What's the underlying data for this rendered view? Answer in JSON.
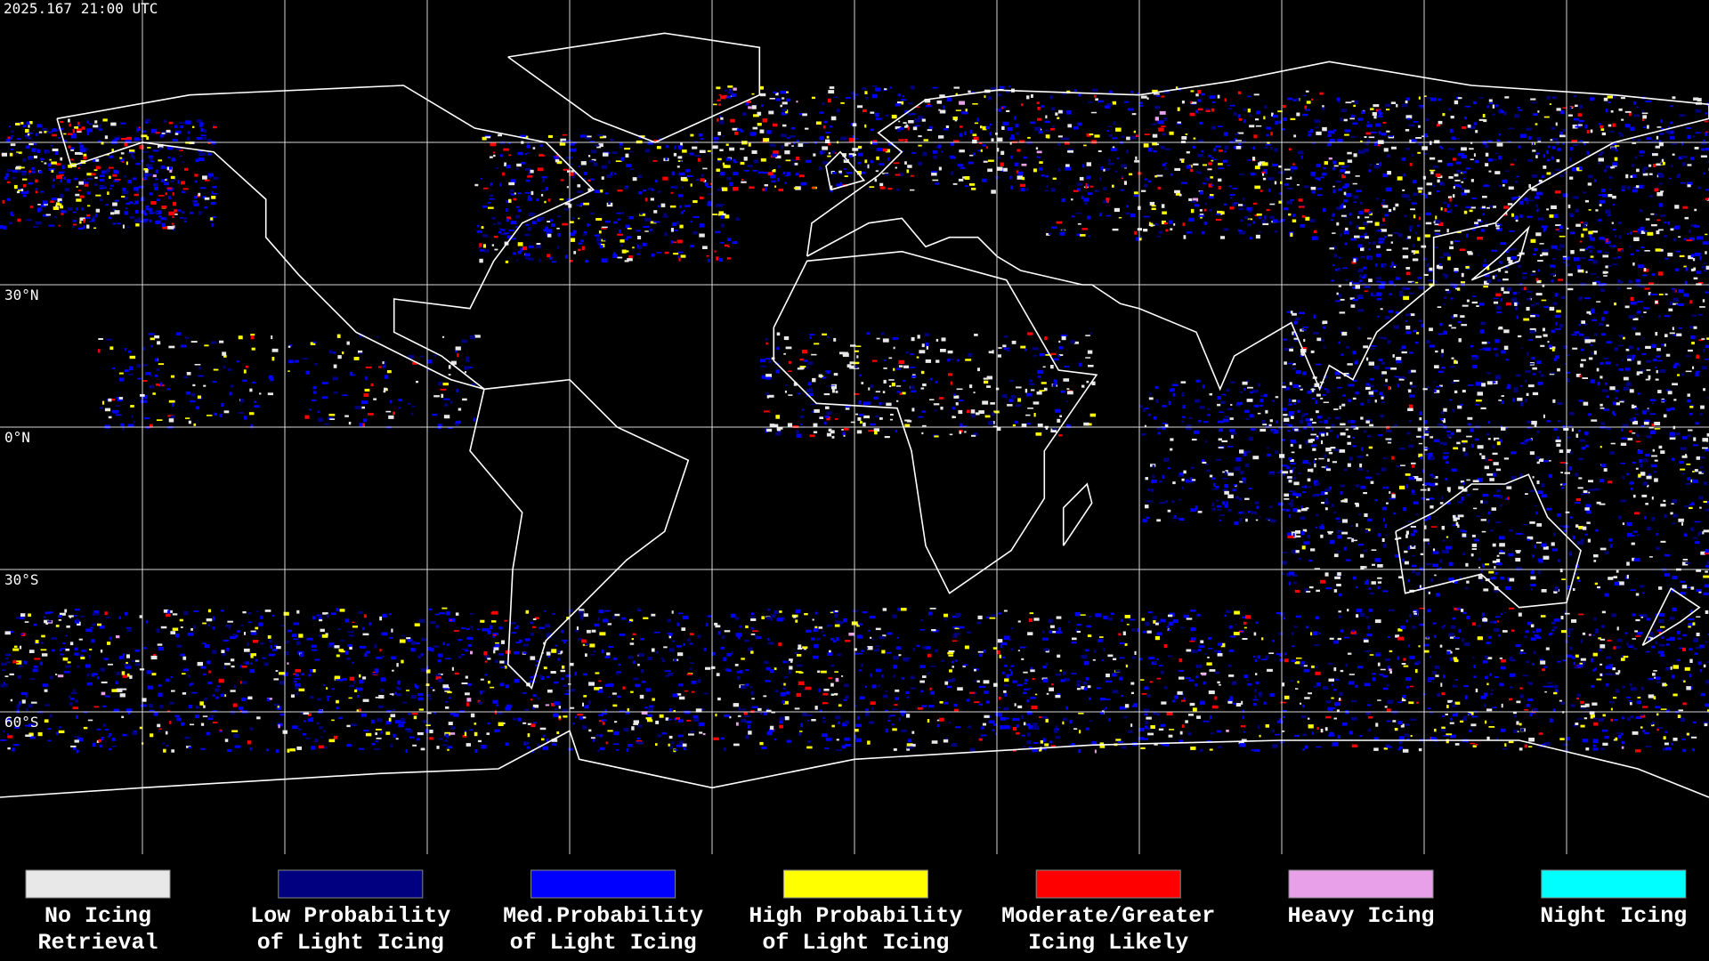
{
  "header": {
    "timestamp": "2025.167 21:00 UTC"
  },
  "map": {
    "latitude_labels": [
      "30°N",
      "0°N",
      "30°S",
      "60°S"
    ]
  },
  "legend": [
    {
      "label": [
        "No Icing",
        "Retrieval"
      ],
      "color": "#e8e8e8"
    },
    {
      "label": [
        "Low Probability",
        "of Light Icing"
      ],
      "color": "#000080"
    },
    {
      "label": [
        "Med.Probability",
        "of Light Icing"
      ],
      "color": "#0000ff"
    },
    {
      "label": [
        "High Probability",
        "of Light Icing"
      ],
      "color": "#ffff00"
    },
    {
      "label": [
        "Moderate/Greater",
        "Icing Likely"
      ],
      "color": "#ff0000"
    },
    {
      "label": [
        "Heavy Icing"
      ],
      "color": "#e8a0e8"
    },
    {
      "label": [
        "Night Icing"
      ],
      "color": "#00ffff"
    }
  ]
}
